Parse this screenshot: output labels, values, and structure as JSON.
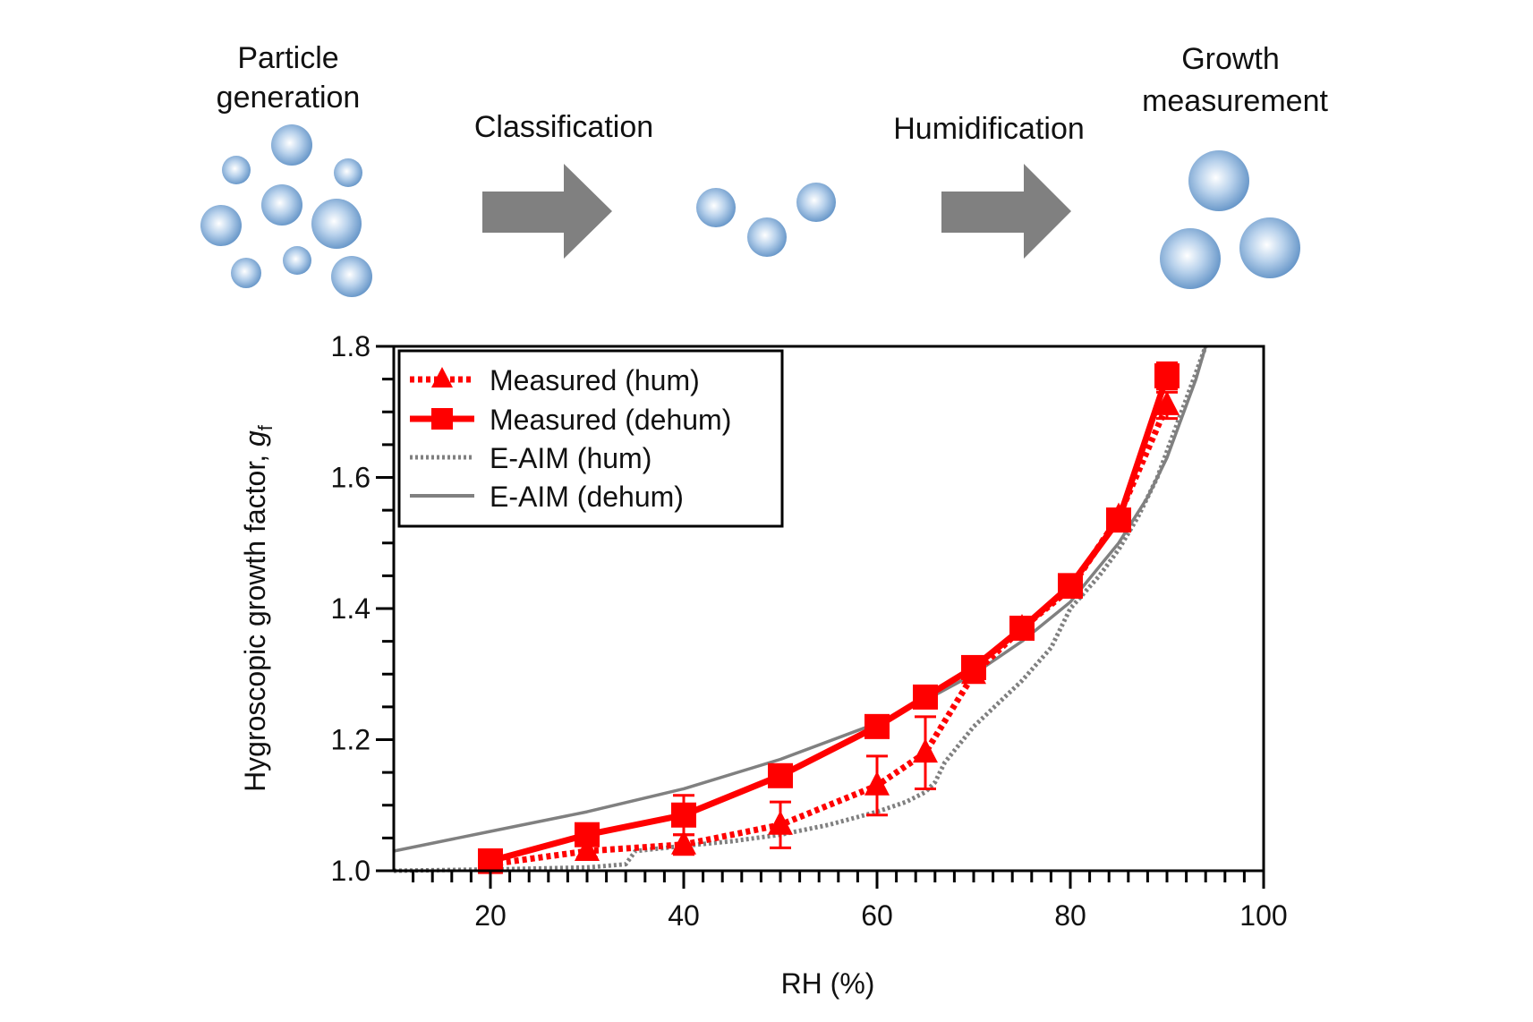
{
  "diagram": {
    "stages": [
      {
        "label_lines": [
          "Particle",
          "generation"
        ]
      },
      {
        "label_lines": [
          "Classification"
        ]
      },
      {
        "label_lines": [
          "Humidification"
        ]
      },
      {
        "label_lines": [
          "Growth",
          "measurement"
        ]
      }
    ],
    "arrow_color": "#808080",
    "particle_color": "#5d8fc4"
  },
  "chart_data": {
    "type": "line",
    "xlabel": "RH (%)",
    "ylabel": "Hygroscopic growth factor, ",
    "ylabel_symbol": "g",
    "ylabel_subscript": "f",
    "xlim": [
      10,
      100
    ],
    "ylim": [
      1.0,
      1.8
    ],
    "xticks": [
      20,
      40,
      60,
      80,
      100
    ],
    "yticks": [
      1.0,
      1.2,
      1.4,
      1.6,
      1.8
    ],
    "grid": false,
    "legend_position": "top-left",
    "series": [
      {
        "name": "Measured (hum)",
        "color": "#ff0000",
        "style": "dotted",
        "marker": "triangle",
        "x": [
          20,
          30,
          40,
          50,
          60,
          65,
          70,
          75,
          80,
          85,
          90
        ],
        "y": [
          1.01,
          1.03,
          1.04,
          1.07,
          1.13,
          1.18,
          1.3,
          1.37,
          1.43,
          1.54,
          1.71
        ],
        "err": [
          0.01,
          0.01,
          0.015,
          0.035,
          0.045,
          0.055,
          0.01,
          0.01,
          0.01,
          0.01,
          0.02
        ]
      },
      {
        "name": "Measured (dehum)",
        "color": "#ff0000",
        "style": "solid",
        "marker": "square",
        "x": [
          20,
          30,
          40,
          50,
          60,
          65,
          70,
          75,
          80,
          85,
          90
        ],
        "y": [
          1.015,
          1.055,
          1.085,
          1.145,
          1.22,
          1.265,
          1.31,
          1.37,
          1.435,
          1.535,
          1.755
        ],
        "err": [
          0.01,
          0.01,
          0.03,
          0.01,
          0.01,
          0.01,
          0.01,
          0.01,
          0.01,
          0.015,
          0.02
        ]
      },
      {
        "name": "E-AIM (hum)",
        "color": "#808080",
        "style": "dotted",
        "x": [
          10,
          20,
          30,
          34,
          35,
          40,
          45,
          50,
          55,
          60,
          63,
          65,
          66,
          67,
          70,
          75,
          78,
          80,
          83,
          85,
          87,
          89,
          90,
          91,
          92,
          93,
          94
        ],
        "y": [
          1.0,
          1.002,
          1.005,
          1.01,
          1.03,
          1.038,
          1.045,
          1.055,
          1.07,
          1.09,
          1.105,
          1.12,
          1.135,
          1.165,
          1.22,
          1.29,
          1.34,
          1.4,
          1.45,
          1.49,
          1.54,
          1.6,
          1.64,
          1.68,
          1.72,
          1.76,
          1.8
        ]
      },
      {
        "name": "E-AIM (dehum)",
        "color": "#808080",
        "style": "solid",
        "x": [
          10,
          20,
          30,
          40,
          50,
          60,
          65,
          70,
          75,
          80,
          85,
          88,
          90,
          91,
          92,
          93,
          94
        ],
        "y": [
          1.03,
          1.06,
          1.09,
          1.125,
          1.17,
          1.225,
          1.26,
          1.3,
          1.35,
          1.41,
          1.5,
          1.57,
          1.63,
          1.67,
          1.71,
          1.75,
          1.8
        ]
      }
    ]
  }
}
